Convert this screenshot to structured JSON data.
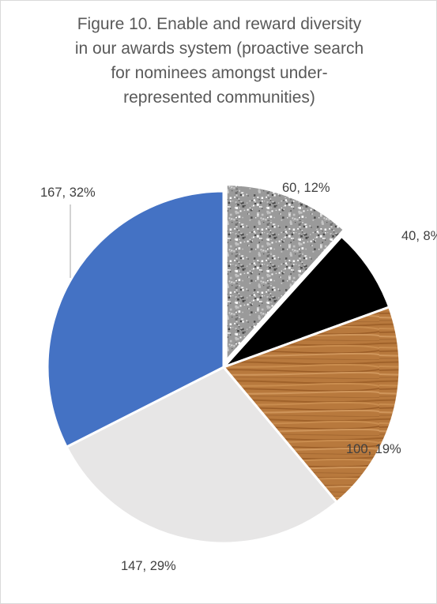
{
  "chart_data": {
    "type": "pie",
    "title": "Figure 10. Enable and reward diversity\nin our awards system (proactive search\nfor nominees amongst under-\nrepresented communities)",
    "slices": [
      {
        "value": 60,
        "percent": "12%",
        "label": "60, 12%",
        "fill": "texture-granite",
        "color": "#a6a6a6"
      },
      {
        "value": 40,
        "percent": "8%",
        "label": "40, 8%",
        "fill": "solid",
        "color": "#000000"
      },
      {
        "value": 100,
        "percent": "19%",
        "label": "100, 19%",
        "fill": "texture-oak",
        "color": "#b5773b"
      },
      {
        "value": 147,
        "percent": "29%",
        "label": "147, 29%",
        "fill": "solid",
        "color": "#e7e6e6"
      },
      {
        "value": 167,
        "percent": "32%",
        "label": "167, 32%",
        "fill": "solid",
        "color": "#4472c4"
      }
    ],
    "start": "12 o'clock",
    "direction": "clockwise",
    "legend": "none",
    "exploded_slice": "60, 12%"
  }
}
